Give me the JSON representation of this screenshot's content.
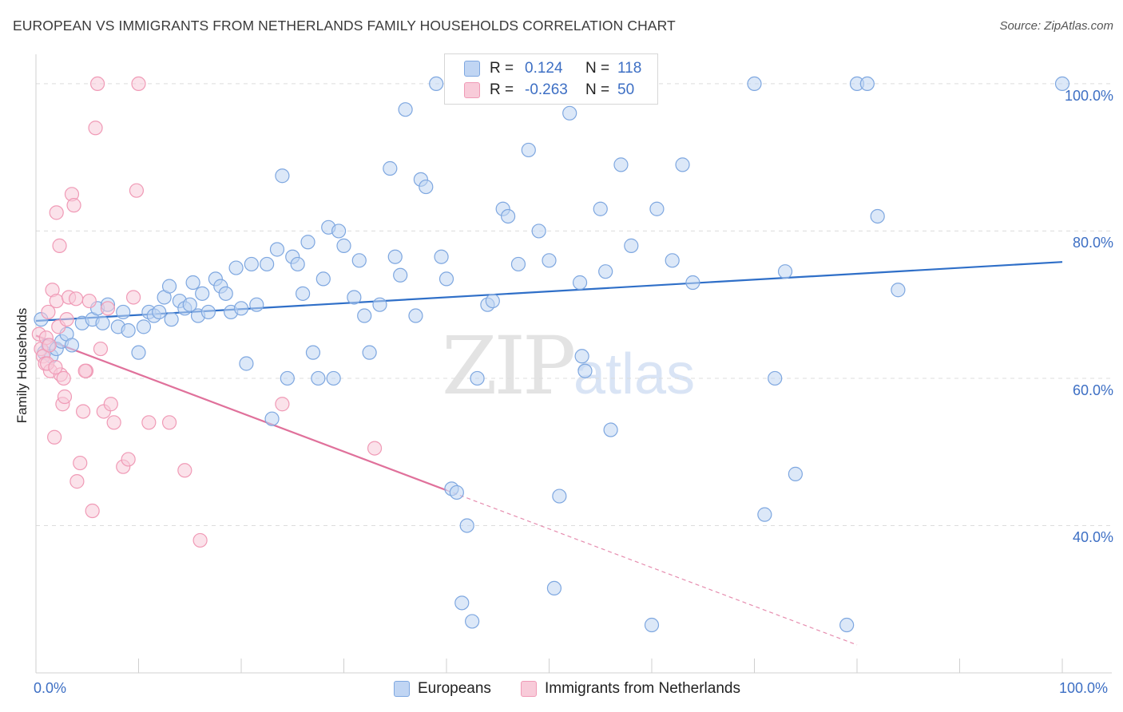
{
  "chart_data": {
    "type": "scatter",
    "title": "EUROPEAN VS IMMIGRANTS FROM NETHERLANDS FAMILY HOUSEHOLDS CORRELATION CHART",
    "source": "Source: ZipAtlas.com",
    "xlabel": "",
    "ylabel": "Family Households",
    "xlim": [
      0,
      100
    ],
    "ylim": [
      20,
      104
    ],
    "x_ticks": [
      "0.0%",
      "100.0%"
    ],
    "y_ticks": [
      {
        "value": 40,
        "label": "40.0%"
      },
      {
        "value": 60,
        "label": "60.0%"
      },
      {
        "value": 80,
        "label": "80.0%"
      },
      {
        "value": 100,
        "label": "100.0%"
      }
    ],
    "grid": true,
    "legend": {
      "placement": "top-center",
      "entries": [
        {
          "r_label": "R =",
          "r_value": "0.124",
          "n_label": "N =",
          "n_value": "118"
        },
        {
          "r_label": "R =",
          "r_value": "-0.263",
          "n_label": "N =",
          "n_value": "50"
        }
      ]
    },
    "series": [
      {
        "name": "Europeans",
        "color": "#7ea7e0",
        "fill": "#c0d5f3",
        "trend": {
          "x": [
            0,
            100
          ],
          "y": [
            67.8,
            75.8
          ],
          "color": "#2f6fc8"
        },
        "points": [
          [
            0.5,
            68
          ],
          [
            0.8,
            63.5
          ],
          [
            1.2,
            64.5
          ],
          [
            1.5,
            63
          ],
          [
            2,
            64
          ],
          [
            2.5,
            65
          ],
          [
            3,
            66
          ],
          [
            3.5,
            64.5
          ],
          [
            4.5,
            67.5
          ],
          [
            5.5,
            68
          ],
          [
            6,
            69.5
          ],
          [
            6.5,
            67.5
          ],
          [
            7,
            70
          ],
          [
            8,
            67
          ],
          [
            8.5,
            69
          ],
          [
            9,
            66.5
          ],
          [
            10,
            63.5
          ],
          [
            10.5,
            67
          ],
          [
            11,
            69
          ],
          [
            11.5,
            68.5
          ],
          [
            12,
            69
          ],
          [
            12.5,
            71
          ],
          [
            13,
            72.5
          ],
          [
            13.2,
            68
          ],
          [
            14,
            70.5
          ],
          [
            14.5,
            69.5
          ],
          [
            15,
            70
          ],
          [
            15.3,
            73
          ],
          [
            15.8,
            68.5
          ],
          [
            16.2,
            71.5
          ],
          [
            16.8,
            69
          ],
          [
            17.5,
            73.5
          ],
          [
            18,
            72.5
          ],
          [
            18.5,
            71.5
          ],
          [
            19,
            69
          ],
          [
            19.5,
            75
          ],
          [
            20,
            69.5
          ],
          [
            20.5,
            62
          ],
          [
            21,
            75.5
          ],
          [
            21.5,
            70
          ],
          [
            22.5,
            75.5
          ],
          [
            23,
            54.5
          ],
          [
            23.5,
            77.5
          ],
          [
            24,
            87.5
          ],
          [
            24.5,
            60
          ],
          [
            25,
            76.5
          ],
          [
            25.5,
            75.5
          ],
          [
            26,
            71.5
          ],
          [
            26.5,
            78.5
          ],
          [
            27,
            63.5
          ],
          [
            27.5,
            60
          ],
          [
            28,
            73.5
          ],
          [
            28.5,
            80.5
          ],
          [
            29,
            60
          ],
          [
            29.5,
            80
          ],
          [
            30,
            78
          ],
          [
            31,
            71
          ],
          [
            31.5,
            76
          ],
          [
            32,
            68.5
          ],
          [
            32.5,
            63.5
          ],
          [
            33.5,
            70
          ],
          [
            34.5,
            88.5
          ],
          [
            35,
            76.5
          ],
          [
            35.5,
            74
          ],
          [
            36,
            96.5
          ],
          [
            37,
            68.5
          ],
          [
            37.5,
            87
          ],
          [
            38,
            86
          ],
          [
            39,
            100
          ],
          [
            39.5,
            76.5
          ],
          [
            40,
            73.5
          ],
          [
            40.5,
            45
          ],
          [
            41,
            44.5
          ],
          [
            41.5,
            29.5
          ],
          [
            42,
            40
          ],
          [
            42.5,
            27
          ],
          [
            43,
            60
          ],
          [
            44,
            70
          ],
          [
            44.5,
            70.5
          ],
          [
            45.5,
            83
          ],
          [
            46,
            82
          ],
          [
            47,
            75.5
          ],
          [
            48,
            91
          ],
          [
            49,
            80
          ],
          [
            50,
            76
          ],
          [
            50.5,
            31.5
          ],
          [
            51,
            44
          ],
          [
            52,
            96
          ],
          [
            53,
            73
          ],
          [
            53.2,
            63
          ],
          [
            53.5,
            61
          ],
          [
            55,
            83
          ],
          [
            55.5,
            74.5
          ],
          [
            56,
            53
          ],
          [
            57,
            89
          ],
          [
            58,
            78
          ],
          [
            60,
            26.5
          ],
          [
            60.5,
            83
          ],
          [
            62,
            76
          ],
          [
            63,
            89
          ],
          [
            64,
            73
          ],
          [
            70,
            100
          ],
          [
            71,
            41.5
          ],
          [
            72,
            60
          ],
          [
            73,
            74.5
          ],
          [
            74,
            47
          ],
          [
            79,
            26.5
          ],
          [
            80,
            100
          ],
          [
            81,
            100
          ],
          [
            82,
            82
          ],
          [
            84,
            72
          ],
          [
            100,
            100
          ]
        ]
      },
      {
        "name": "Immigrants from Netherlands",
        "color": "#f09ab6",
        "fill": "#f8cbd9",
        "trend": {
          "x": [
            0,
            40
          ],
          "y": [
            65.8,
            44.8
          ],
          "color": "#e0719b"
        },
        "trend_extension": {
          "x": [
            40,
            80
          ],
          "y": [
            44.8,
            23.8
          ]
        },
        "points": [
          [
            0.3,
            66
          ],
          [
            0.5,
            64
          ],
          [
            0.7,
            63
          ],
          [
            0.9,
            62
          ],
          [
            1,
            65.5
          ],
          [
            1.2,
            69
          ],
          [
            1.4,
            61
          ],
          [
            1.6,
            72
          ],
          [
            1.8,
            52
          ],
          [
            2,
            70.5
          ],
          [
            2.2,
            67
          ],
          [
            2.4,
            60.5
          ],
          [
            2.6,
            56.5
          ],
          [
            2.8,
            57.5
          ],
          [
            3,
            68
          ],
          [
            3.2,
            71
          ],
          [
            3.5,
            85
          ],
          [
            3.7,
            83.5
          ],
          [
            4,
            46
          ],
          [
            4.3,
            48.5
          ],
          [
            4.6,
            55.5
          ],
          [
            4.9,
            61
          ],
          [
            5.2,
            70.5
          ],
          [
            5.5,
            42
          ],
          [
            5.8,
            94
          ],
          [
            6,
            100
          ],
          [
            6.3,
            64
          ],
          [
            6.6,
            55.5
          ],
          [
            7,
            69.5
          ],
          [
            7.3,
            56.5
          ],
          [
            7.6,
            54
          ],
          [
            8.5,
            48
          ],
          [
            9.5,
            71
          ],
          [
            9,
            49
          ],
          [
            9.8,
            85.5
          ],
          [
            10,
            100
          ],
          [
            11,
            54
          ],
          [
            13,
            54
          ],
          [
            14.5,
            47.5
          ],
          [
            16,
            38
          ],
          [
            2,
            82.5
          ],
          [
            2.3,
            78
          ],
          [
            1.1,
            62
          ],
          [
            1.3,
            64.5
          ],
          [
            1.9,
            61.5
          ],
          [
            2.7,
            60
          ],
          [
            3.9,
            70.8
          ],
          [
            4.8,
            61
          ],
          [
            24,
            56.5
          ],
          [
            33,
            50.5
          ]
        ]
      }
    ]
  },
  "bottom_legend": {
    "europeans_label": "Europeans",
    "netherlands_label": "Immigrants from Netherlands"
  },
  "watermark": {
    "zip": "ZIP",
    "atlas": "atlas"
  }
}
